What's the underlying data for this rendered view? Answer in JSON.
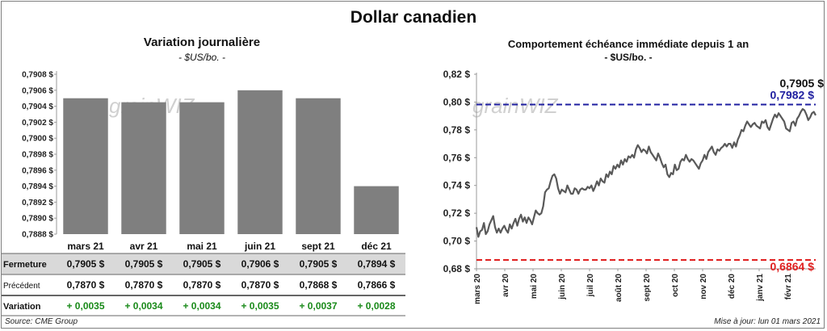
{
  "header": {
    "title": "Dollar canadien"
  },
  "left_panel": {
    "title": "Variation  journalière",
    "unit": "- $US/bo. -"
  },
  "right_panel": {
    "title": "Comportement échéance immédiate depuis 1 an",
    "unit": "- $US/bo. -"
  },
  "watermark": "grainWIZ",
  "footer": {
    "source": "Source: CME Group",
    "updated": "Mise à jour: lun 01 mars 2021"
  },
  "table": {
    "rows": [
      {
        "label": "Fermeture",
        "values": [
          "0,7905  $",
          "0,7905  $",
          "0,7905  $",
          "0,7906  $",
          "0,7905  $",
          "0,7894  $"
        ]
      },
      {
        "label": "Précédent",
        "values": [
          "0,7870  $",
          "0,7870  $",
          "0,7870  $",
          "0,7870  $",
          "0,7868  $",
          "0,7866  $"
        ]
      },
      {
        "label": "Variation",
        "values": [
          "+ 0,0035",
          "+ 0,0034",
          "+ 0,0034",
          "+ 0,0035",
          "+ 0,0037",
          "+ 0,0028"
        ]
      }
    ]
  },
  "colors": {
    "bar": "#7f7f7f",
    "line": "#595959",
    "upper": "#1f1fa0",
    "lower": "#e02020",
    "positive": "#1a8a1a",
    "shade": "#d9d9d9"
  },
  "chart_data": [
    {
      "type": "bar",
      "categories": [
        "mars 21",
        "avr 21",
        "mai 21",
        "juin 21",
        "sept 21",
        "déc 21"
      ],
      "values": [
        0.7905,
        0.79045,
        0.79045,
        0.7906,
        0.7905,
        0.7894
      ],
      "ylim": [
        0.7888,
        0.7908
      ],
      "yticks": [
        "0,7888 $",
        "0,7890 $",
        "0,7892 $",
        "0,7894 $",
        "0,7896 $",
        "0,7898 $",
        "0,7900 $",
        "0,7902 $",
        "0,7904 $",
        "0,7906 $",
        "0,7908 $"
      ]
    },
    {
      "type": "line",
      "xticks": [
        "mars 20",
        "avr 20",
        "mai 20",
        "juin 20",
        "juil 20",
        "août 20",
        "sept 20",
        "oct 20",
        "nov 20",
        "déc 20",
        "janv 21",
        "févr 21"
      ],
      "yticks": [
        "0,68 $",
        "0,70 $",
        "0,72 $",
        "0,74 $",
        "0,76 $",
        "0,78 $",
        "0,80 $",
        "0,82 $"
      ],
      "ylim": [
        0.68,
        0.82
      ],
      "xlim": [
        0,
        12
      ],
      "values": [
        0.71,
        0.703,
        0.707,
        0.708,
        0.713,
        0.705,
        0.707,
        0.712,
        0.715,
        0.718,
        0.71,
        0.706,
        0.709,
        0.706,
        0.709,
        0.711,
        0.708,
        0.706,
        0.712,
        0.709,
        0.713,
        0.716,
        0.711,
        0.716,
        0.719,
        0.714,
        0.717,
        0.713,
        0.717,
        0.715,
        0.712,
        0.717,
        0.722,
        0.72,
        0.719,
        0.72,
        0.725,
        0.735,
        0.737,
        0.738,
        0.743,
        0.747,
        0.748,
        0.745,
        0.738,
        0.734,
        0.737,
        0.736,
        0.735,
        0.74,
        0.737,
        0.734,
        0.734,
        0.738,
        0.737,
        0.734,
        0.737,
        0.738,
        0.737,
        0.737,
        0.739,
        0.738,
        0.74,
        0.736,
        0.739,
        0.743,
        0.74,
        0.745,
        0.743,
        0.742,
        0.748,
        0.746,
        0.75,
        0.748,
        0.754,
        0.752,
        0.755,
        0.753,
        0.758,
        0.755,
        0.759,
        0.757,
        0.761,
        0.76,
        0.762,
        0.76,
        0.766,
        0.769,
        0.767,
        0.764,
        0.766,
        0.765,
        0.763,
        0.768,
        0.764,
        0.762,
        0.76,
        0.758,
        0.763,
        0.76,
        0.756,
        0.753,
        0.755,
        0.748,
        0.746,
        0.749,
        0.748,
        0.755,
        0.751,
        0.752,
        0.757,
        0.759,
        0.758,
        0.762,
        0.759,
        0.757,
        0.759,
        0.758,
        0.756,
        0.754,
        0.752,
        0.756,
        0.758,
        0.762,
        0.759,
        0.764,
        0.766,
        0.768,
        0.764,
        0.762,
        0.766,
        0.765,
        0.767,
        0.768,
        0.77,
        0.768,
        0.77,
        0.77,
        0.767,
        0.771,
        0.768,
        0.773,
        0.776,
        0.78,
        0.779,
        0.783,
        0.786,
        0.784,
        0.782,
        0.784,
        0.785,
        0.783,
        0.782,
        0.781,
        0.786,
        0.785,
        0.787,
        0.782,
        0.78,
        0.784,
        0.788,
        0.791,
        0.789,
        0.792,
        0.79,
        0.788,
        0.786,
        0.781,
        0.78,
        0.779,
        0.785,
        0.786,
        0.783,
        0.788,
        0.79,
        0.793,
        0.795,
        0.794,
        0.791,
        0.787,
        0.789,
        0.792,
        0.793,
        0.7905
      ],
      "reference_lines": [
        {
          "value": 0.7982,
          "label": "0,7982  $"
        },
        {
          "value": 0.6864,
          "label": "0,6864  $"
        }
      ],
      "last_value_label": "0,7905 $"
    }
  ]
}
